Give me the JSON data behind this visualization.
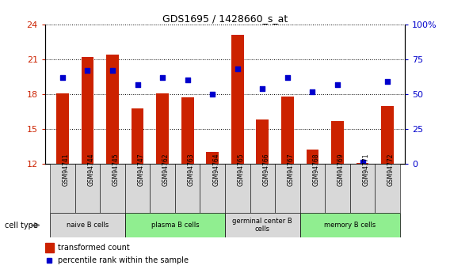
{
  "title": "GDS1695 / 1428660_s_at",
  "samples": [
    "GSM94741",
    "GSM94744",
    "GSM94745",
    "GSM94747",
    "GSM94762",
    "GSM94763",
    "GSM94764",
    "GSM94765",
    "GSM94766",
    "GSM94767",
    "GSM94768",
    "GSM94769",
    "GSM94771",
    "GSM94772"
  ],
  "transformed_count": [
    18.1,
    21.2,
    21.4,
    16.8,
    18.1,
    17.7,
    13.0,
    23.1,
    15.8,
    17.8,
    13.2,
    15.7,
    12.05,
    17.0
  ],
  "percentile_rank": [
    62,
    67,
    67,
    57,
    62,
    60,
    50,
    68,
    54,
    62,
    52,
    57,
    1,
    59
  ],
  "ylim_left": [
    12,
    24
  ],
  "ylim_right": [
    0,
    100
  ],
  "yticks_left": [
    12,
    15,
    18,
    21,
    24
  ],
  "yticks_right": [
    0,
    25,
    50,
    75,
    100
  ],
  "bar_color": "#cc2200",
  "dot_color": "#0000cc",
  "cell_groups": [
    {
      "label": "naive B cells",
      "start": 0,
      "end": 3,
      "color": "#d8d8d8"
    },
    {
      "label": "plasma B cells",
      "start": 3,
      "end": 7,
      "color": "#90ee90"
    },
    {
      "label": "germinal center B\ncells",
      "start": 7,
      "end": 10,
      "color": "#d8d8d8"
    },
    {
      "label": "memory B cells",
      "start": 10,
      "end": 14,
      "color": "#90ee90"
    }
  ],
  "sample_box_color": "#d8d8d8",
  "legend_bar_label": "transformed count",
  "legend_dot_label": "percentile rank within the sample",
  "cell_type_label": "cell type",
  "left_axis_color": "#cc2200",
  "right_axis_color": "#0000cc"
}
